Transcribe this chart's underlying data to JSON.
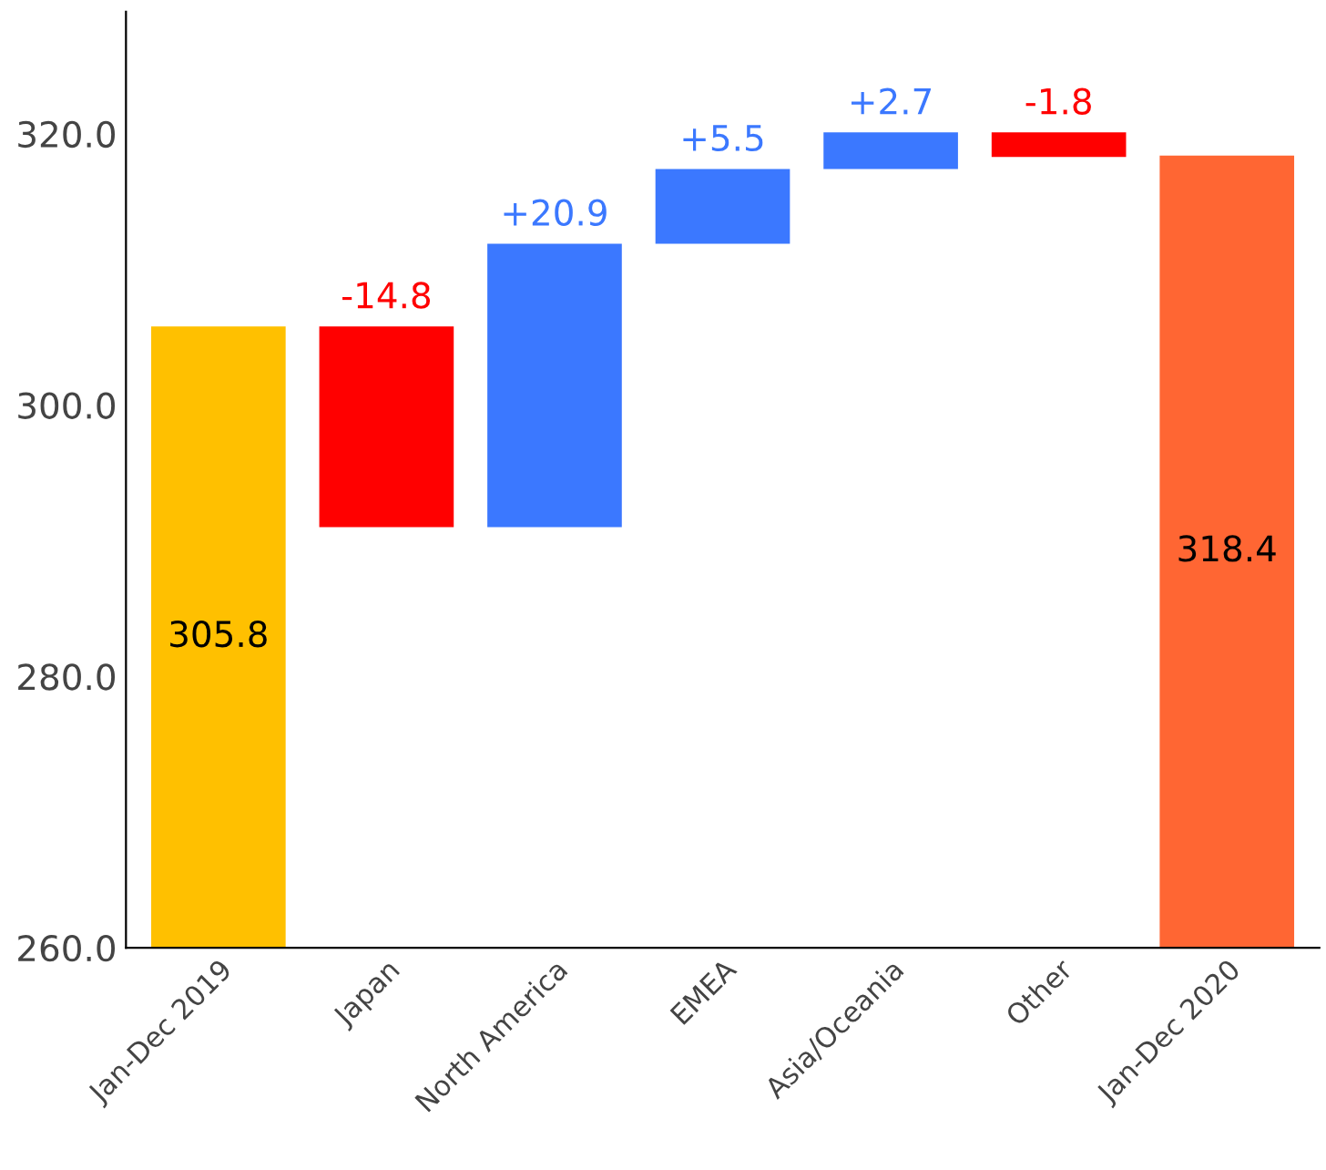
{
  "chart_data": {
    "type": "bar",
    "categories": [
      "Jan-Dec 2019",
      "Japan",
      "North America",
      "EMEA",
      "Asia/Oceania",
      "Other",
      "Jan-Dec 2020"
    ],
    "values": [
      45.8,
      -14.8,
      20.9,
      5.5,
      2.7,
      -1.8,
      58.4
    ],
    "base": [
      260,
      305.8,
      291.0,
      311.9,
      317.4,
      320.1,
      260
    ],
    "colors": [
      "#ffc000",
      "#ff0000",
      "#3b78ff",
      "#3b78ff",
      "#3b78ff",
      "#ff0000",
      "#ff6633"
    ],
    "value_labels": [
      "305.8",
      "-14.8",
      "+20.9",
      "+5.5",
      "+2.7",
      "-1.8",
      "318.4"
    ],
    "ylim": [
      260,
      329
    ],
    "yticks": [
      {
        "value": 260,
        "label": "260.0"
      },
      {
        "value": 280,
        "label": "280.0"
      },
      {
        "value": 300,
        "label": "300.0"
      },
      {
        "value": 320,
        "label": "320.0"
      }
    ],
    "grid": false
  }
}
